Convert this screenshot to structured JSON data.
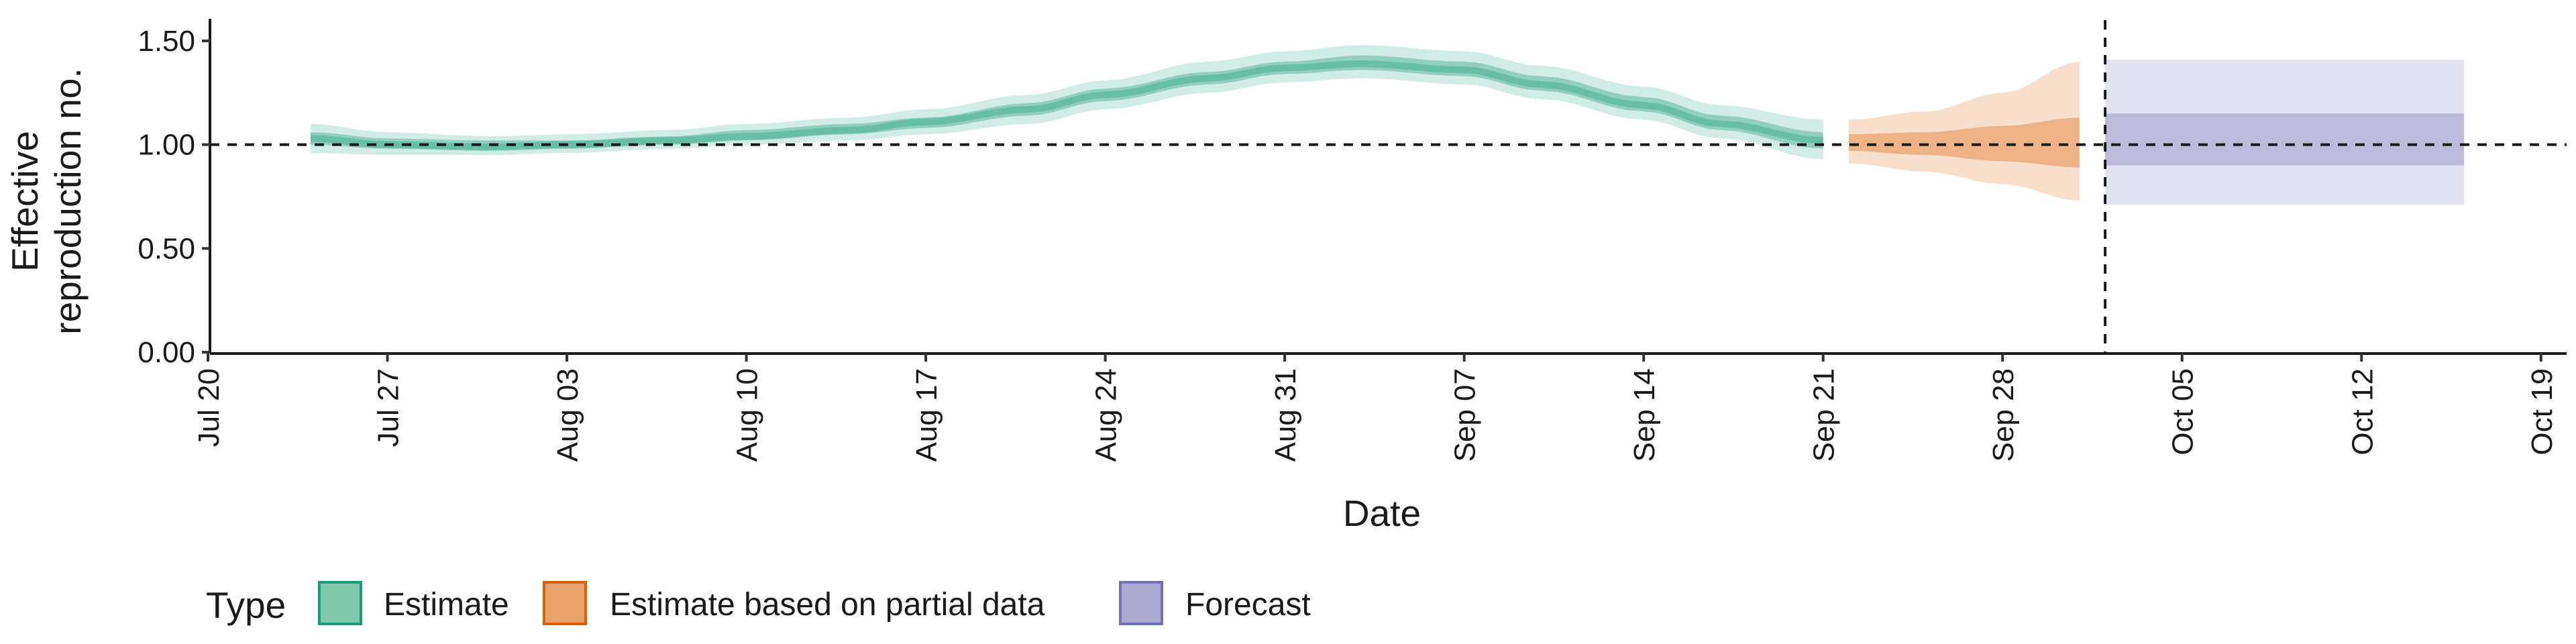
{
  "chart_data": {
    "type": "area",
    "xlabel": "Date",
    "ylabel_lines": [
      "Effective",
      "reproduction no."
    ],
    "x_range": [
      "2020-07-20",
      "2020-10-20"
    ],
    "ylim": [
      0,
      1.6
    ],
    "y_ticks": [
      {
        "value": 0,
        "label": "0.00"
      },
      {
        "value": 0.5,
        "label": "0.50"
      },
      {
        "value": 1.0,
        "label": "1.00"
      },
      {
        "value": 1.5,
        "label": "1.50"
      }
    ],
    "x_ticks": [
      {
        "date": "2020-07-20",
        "label": "Jul 20"
      },
      {
        "date": "2020-07-27",
        "label": "Jul 27"
      },
      {
        "date": "2020-08-03",
        "label": "Aug 03"
      },
      {
        "date": "2020-08-10",
        "label": "Aug 10"
      },
      {
        "date": "2020-08-17",
        "label": "Aug 17"
      },
      {
        "date": "2020-08-24",
        "label": "Aug 24"
      },
      {
        "date": "2020-08-31",
        "label": "Aug 31"
      },
      {
        "date": "2020-09-07",
        "label": "Sep 07"
      },
      {
        "date": "2020-09-14",
        "label": "Sep 14"
      },
      {
        "date": "2020-09-21",
        "label": "Sep 21"
      },
      {
        "date": "2020-09-28",
        "label": "Sep 28"
      },
      {
        "date": "2020-10-05",
        "label": "Oct 05"
      },
      {
        "date": "2020-10-12",
        "label": "Oct 12"
      },
      {
        "date": "2020-10-19",
        "label": "Oct 19"
      }
    ],
    "reference_line_y": 1.0,
    "vertical_line_date": "2020-10-02",
    "legend": {
      "title": "Type",
      "position": "bottom",
      "entries": [
        {
          "name": "Estimate",
          "fill": "#7fc7ad",
          "stroke": "#1b9e77"
        },
        {
          "name": "Estimate based on partial data",
          "fill": "#eaa26b",
          "stroke": "#d95f02"
        },
        {
          "name": "Forecast",
          "fill": "#aaa7d1",
          "stroke": "#7570b3"
        }
      ]
    },
    "series": [
      {
        "type": "Estimate",
        "color": "#1b9e77",
        "points": [
          {
            "date": "2020-07-24",
            "median": 1.03,
            "lower_50": 1.0,
            "upper_50": 1.06,
            "lower_90": 0.96,
            "upper_90": 1.1
          },
          {
            "date": "2020-07-27",
            "median": 1.0,
            "lower_50": 0.98,
            "upper_50": 1.03,
            "lower_90": 0.95,
            "upper_90": 1.06
          },
          {
            "date": "2020-07-31",
            "median": 0.99,
            "lower_50": 0.97,
            "upper_50": 1.02,
            "lower_90": 0.95,
            "upper_90": 1.04
          },
          {
            "date": "2020-08-03",
            "median": 1.0,
            "lower_50": 0.98,
            "upper_50": 1.02,
            "lower_90": 0.96,
            "upper_90": 1.05
          },
          {
            "date": "2020-08-07",
            "median": 1.02,
            "lower_50": 1.0,
            "upper_50": 1.04,
            "lower_90": 0.98,
            "upper_90": 1.07
          },
          {
            "date": "2020-08-10",
            "median": 1.04,
            "lower_50": 1.02,
            "upper_50": 1.07,
            "lower_90": 1.0,
            "upper_90": 1.1
          },
          {
            "date": "2020-08-14",
            "median": 1.07,
            "lower_50": 1.05,
            "upper_50": 1.1,
            "lower_90": 1.02,
            "upper_90": 1.13
          },
          {
            "date": "2020-08-17",
            "median": 1.11,
            "lower_50": 1.08,
            "upper_50": 1.13,
            "lower_90": 1.05,
            "upper_90": 1.17
          },
          {
            "date": "2020-08-21",
            "median": 1.17,
            "lower_50": 1.14,
            "upper_50": 1.2,
            "lower_90": 1.1,
            "upper_90": 1.24
          },
          {
            "date": "2020-08-24",
            "median": 1.24,
            "lower_50": 1.21,
            "upper_50": 1.27,
            "lower_90": 1.17,
            "upper_90": 1.31
          },
          {
            "date": "2020-08-28",
            "median": 1.32,
            "lower_50": 1.29,
            "upper_50": 1.35,
            "lower_90": 1.25,
            "upper_90": 1.4
          },
          {
            "date": "2020-08-31",
            "median": 1.37,
            "lower_50": 1.34,
            "upper_50": 1.4,
            "lower_90": 1.3,
            "upper_90": 1.45
          },
          {
            "date": "2020-09-03",
            "median": 1.39,
            "lower_50": 1.36,
            "upper_50": 1.43,
            "lower_90": 1.32,
            "upper_90": 1.48
          },
          {
            "date": "2020-09-07",
            "median": 1.36,
            "lower_50": 1.33,
            "upper_50": 1.4,
            "lower_90": 1.29,
            "upper_90": 1.45
          },
          {
            "date": "2020-09-10",
            "median": 1.29,
            "lower_50": 1.26,
            "upper_50": 1.33,
            "lower_90": 1.22,
            "upper_90": 1.38
          },
          {
            "date": "2020-09-14",
            "median": 1.19,
            "lower_50": 1.16,
            "upper_50": 1.23,
            "lower_90": 1.12,
            "upper_90": 1.28
          },
          {
            "date": "2020-09-17",
            "median": 1.1,
            "lower_50": 1.07,
            "upper_50": 1.14,
            "lower_90": 1.03,
            "upper_90": 1.19
          },
          {
            "date": "2020-09-21",
            "median": 1.02,
            "lower_50": 0.98,
            "upper_50": 1.06,
            "lower_90": 0.93,
            "upper_90": 1.12
          }
        ]
      },
      {
        "type": "Estimate based on partial data",
        "color": "#d95f02",
        "points": [
          {
            "date": "2020-09-22",
            "median": 1.01,
            "lower_50": 0.97,
            "upper_50": 1.05,
            "lower_90": 0.91,
            "upper_90": 1.12
          },
          {
            "date": "2020-09-25",
            "median": 1.01,
            "lower_50": 0.95,
            "upper_50": 1.06,
            "lower_90": 0.87,
            "upper_90": 1.16
          },
          {
            "date": "2020-09-28",
            "median": 1.01,
            "lower_50": 0.92,
            "upper_50": 1.09,
            "lower_90": 0.81,
            "upper_90": 1.25
          },
          {
            "date": "2020-10-01",
            "median": 1.02,
            "lower_50": 0.89,
            "upper_50": 1.13,
            "lower_90": 0.73,
            "upper_90": 1.4
          }
        ]
      },
      {
        "type": "Forecast",
        "color": "#7570b3",
        "points": [
          {
            "date": "2020-10-02",
            "median": 1.02,
            "lower_50": 0.9,
            "upper_50": 1.15,
            "lower_90": 0.71,
            "upper_90": 1.41
          },
          {
            "date": "2020-10-16",
            "median": 1.02,
            "lower_50": 0.9,
            "upper_50": 1.15,
            "lower_90": 0.71,
            "upper_90": 1.41
          }
        ]
      }
    ]
  }
}
